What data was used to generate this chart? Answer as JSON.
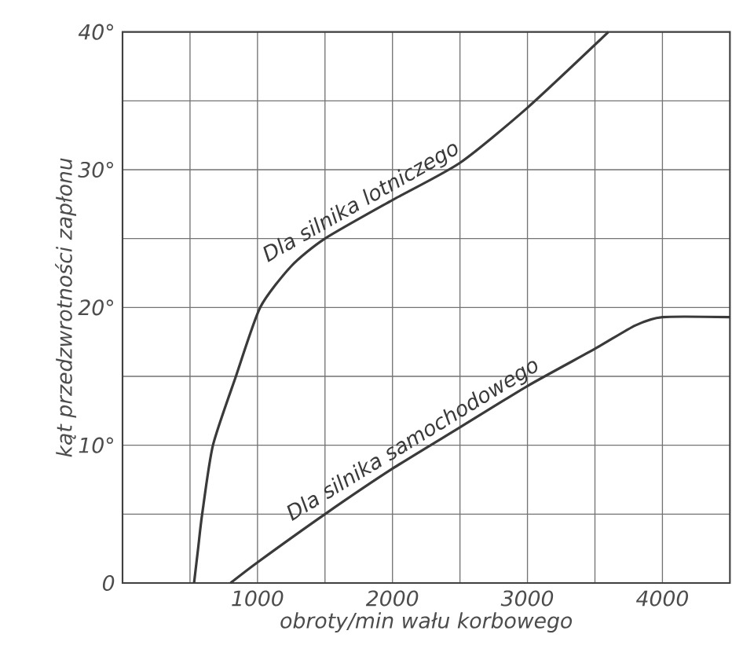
{
  "chart_data": {
    "type": "line",
    "xlabel": "obroty/min wału korbowego",
    "ylabel": "kąt przedzwrotności zapłonu",
    "series": [
      {
        "name": "Dla silnika lotniczego",
        "color": "#3a3a3a",
        "x": [
          530,
          560,
          590,
          670,
          840,
          1020,
          1250,
          1500,
          2000,
          2500,
          3000,
          3600
        ],
        "values": [
          0,
          2.5,
          5,
          10,
          15,
          20,
          23,
          25,
          27.8,
          30.5,
          34.5,
          40
        ]
      },
      {
        "name": "Dla silnika samochodowego",
        "color": "#3a3a3a",
        "x": [
          800,
          1000,
          1500,
          2000,
          2500,
          3000,
          3500,
          3800,
          4000,
          4500
        ],
        "values": [
          0,
          1.5,
          5,
          8.3,
          11.3,
          14.3,
          17,
          18.7,
          19.3,
          19.3
        ]
      }
    ],
    "xlim": [
      0,
      4500
    ],
    "xticks": [
      {
        "value": 500,
        "label": null
      },
      1000,
      {
        "value": 1500,
        "label": null
      },
      2000,
      {
        "value": 2500,
        "label": null
      },
      3000,
      {
        "value": 3500,
        "label": null
      },
      4000
    ],
    "ylim": [
      0,
      40
    ],
    "yticks": [
      0,
      {
        "value": 5,
        "label": null
      },
      {
        "value": 10,
        "label": "10°"
      },
      {
        "value": 15,
        "label": null
      },
      {
        "value": 20,
        "label": "20°"
      },
      {
        "value": 25,
        "label": null
      },
      {
        "value": 30,
        "label": "30°"
      },
      {
        "value": 35,
        "label": null
      },
      {
        "value": 40,
        "label": "40°"
      }
    ],
    "grid": true,
    "legend": false,
    "marker": "none",
    "line_style": "solid"
  }
}
